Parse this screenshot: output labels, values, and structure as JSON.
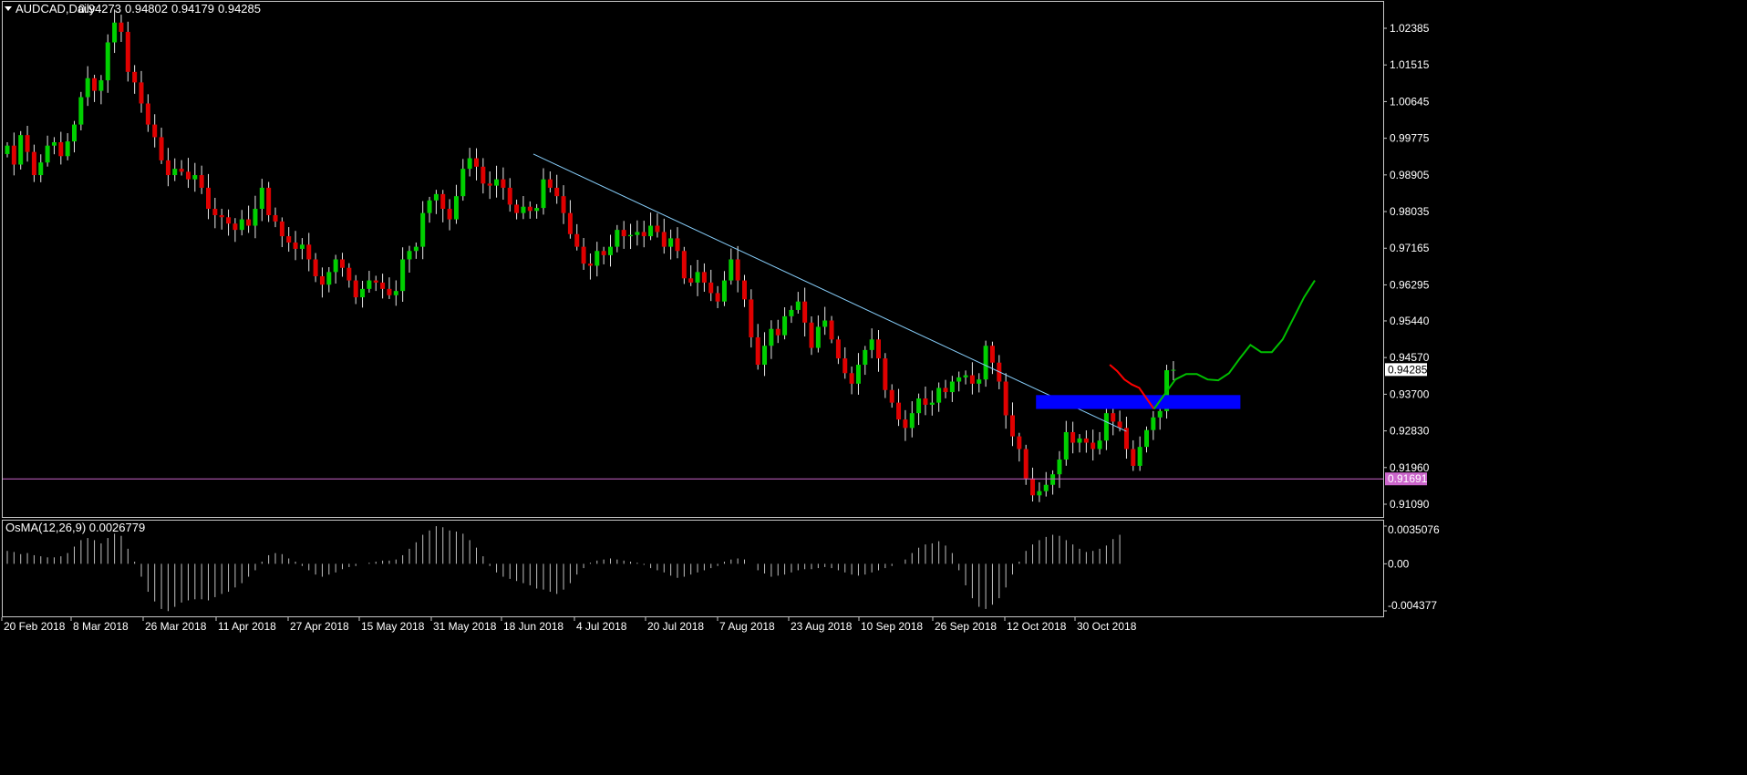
{
  "header": {
    "symbol": "AUDCAD,Daily",
    "open": "0.94273",
    "high": "0.94802",
    "low": "0.94179",
    "close": "0.94285",
    "menu_icon": "triangle-down-icon"
  },
  "indicator": {
    "title": "OsMA(12,26,9) 0.0026779",
    "tick_labels": [
      "0.0035076",
      "0.00",
      "-0.004377"
    ]
  },
  "price_levels": {
    "current_price_label": "0.94285",
    "current_price_color": "#ffffff",
    "horizontal_line_label": "0.91691",
    "horizontal_line_color": "#cc66cc"
  },
  "colors": {
    "bull": "#00d000",
    "bear": "#e00000",
    "trendline": "#87cefa",
    "zone": "#0000ff",
    "projection_down": "#ff0000",
    "projection_up": "#00c000",
    "osma_bars": "#c0c0c0"
  },
  "chart_data": [
    {
      "type": "candlestick",
      "title": "",
      "series": [
        {
          "name": "AUDCAD,Daily"
        }
      ],
      "y_ticks": [
        "1.02385",
        "1.01515",
        "1.00645",
        "0.99775",
        "0.98905",
        "0.98035",
        "0.97165",
        "0.96295",
        "0.95440",
        "0.94570",
        "0.93700",
        "0.92830",
        "0.91960",
        "0.91090"
      ],
      "ylim": [
        0.9085,
        1.0295
      ],
      "x_ticks": [
        "20 Feb 2018",
        "8 Mar 2018",
        "26 Mar 2018",
        "11 Apr 2018",
        "27 Apr 2018",
        "15 May 2018",
        "31 May 2018",
        "18 Jun 2018",
        "4 Jul 2018",
        "20 Jul 2018",
        "7 Aug 2018",
        "23 Aug 2018",
        "10 Sep 2018",
        "26 Sep 2018",
        "12 Oct 2018",
        "30 Oct 2018"
      ],
      "closes": [
        0.996,
        0.9915,
        0.9985,
        0.9945,
        0.989,
        0.992,
        0.996,
        0.9968,
        0.9935,
        0.997,
        1.001,
        1.0075,
        1.012,
        1.009,
        1.0115,
        1.0205,
        1.0252,
        1.023,
        1.0135,
        1.011,
        1.006,
        1.001,
        0.998,
        0.9925,
        0.989,
        0.9905,
        0.9898,
        0.988,
        0.989,
        0.986,
        0.981,
        0.9795,
        0.979,
        0.9775,
        0.976,
        0.9785,
        0.977,
        0.981,
        0.986,
        0.9795,
        0.978,
        0.9745,
        0.973,
        0.9715,
        0.9725,
        0.969,
        0.965,
        0.963,
        0.966,
        0.969,
        0.967,
        0.964,
        0.96,
        0.962,
        0.964,
        0.9635,
        0.962,
        0.9605,
        0.9615,
        0.969,
        0.971,
        0.972,
        0.98,
        0.983,
        0.9845,
        0.981,
        0.9785,
        0.984,
        0.9905,
        0.993,
        0.991,
        0.987,
        0.9865,
        0.988,
        0.986,
        0.982,
        0.98,
        0.9815,
        0.9805,
        0.9812,
        0.988,
        0.986,
        0.984,
        0.98,
        0.975,
        0.972,
        0.968,
        0.9675,
        0.971,
        0.97,
        0.972,
        0.976,
        0.9745,
        0.9748,
        0.9755,
        0.9745,
        0.977,
        0.9755,
        0.972,
        0.974,
        0.971,
        0.9645,
        0.9635,
        0.966,
        0.9635,
        0.961,
        0.959,
        0.964,
        0.969,
        0.964,
        0.9595,
        0.9505,
        0.944,
        0.9485,
        0.9525,
        0.951,
        0.9555,
        0.957,
        0.959,
        0.954,
        0.948,
        0.953,
        0.9545,
        0.95,
        0.9455,
        0.942,
        0.9395,
        0.944,
        0.9475,
        0.95,
        0.9455,
        0.938,
        0.935,
        0.931,
        0.929,
        0.9325,
        0.936,
        0.9345,
        0.935,
        0.9385,
        0.9375,
        0.94,
        0.941,
        0.9415,
        0.9395,
        0.9405,
        0.9485,
        0.9445,
        0.94,
        0.932,
        0.927,
        0.924,
        0.917,
        0.913,
        0.914,
        0.9155,
        0.918,
        0.9215,
        0.928,
        0.9255,
        0.9265,
        0.9255,
        0.924,
        0.926,
        0.9325,
        0.9305,
        0.929,
        0.924,
        0.92,
        0.9245,
        0.9285,
        0.9315,
        0.933,
        0.9427,
        0.9428
      ],
      "horizontal_level": 0.91691,
      "current_price": 0.94285,
      "trendline": {
        "from": [
          "18 Jun 2018",
          0.994
        ],
        "to": [
          "10 Nov 2018",
          0.9282
        ]
      },
      "resistance_zone": {
        "from": "12 Oct 2018",
        "to": "23 Nov 2018",
        "upper": 0.9368,
        "lower": 0.9335
      },
      "projection_down": [
        0.944,
        0.9425,
        0.9405,
        0.9393,
        0.9385,
        0.936,
        0.9335
      ],
      "projection_up": [
        0.9335,
        0.937,
        0.9405,
        0.9418,
        0.9418,
        0.9405,
        0.9403,
        0.942,
        0.9455,
        0.9487,
        0.947,
        0.947,
        0.95,
        0.955,
        0.96,
        0.964
      ]
    },
    {
      "type": "histogram",
      "title": "OsMA(12,26,9) 0.0026779",
      "ylim": [
        -0.004377,
        0.0035076
      ],
      "values": [
        0.0012,
        0.0011,
        0.0009,
        0.001,
        0.0008,
        0.0007,
        0.0006,
        0.0006,
        0.0007,
        0.001,
        0.0016,
        0.0022,
        0.0024,
        0.0022,
        0.0019,
        0.0024,
        0.0028,
        0.0026,
        0.0014,
        0.0002,
        -0.0012,
        -0.0026,
        -0.0035,
        -0.0042,
        -0.0044,
        -0.004,
        -0.0036,
        -0.0034,
        -0.0033,
        -0.0033,
        -0.0034,
        -0.0031,
        -0.0028,
        -0.0026,
        -0.0022,
        -0.0018,
        -0.0012,
        -0.0006,
        0.0002,
        0.0008,
        0.001,
        0.0009,
        0.0005,
        0.0002,
        -0.0002,
        -0.0006,
        -0.001,
        -0.0012,
        -0.001,
        -0.0008,
        -0.0005,
        -0.0003,
        -0.0002,
        0.0,
        0.0001,
        0.0002,
        0.0003,
        0.0003,
        0.0004,
        0.0008,
        0.0014,
        0.002,
        0.0027,
        0.0031,
        0.0035,
        0.0034,
        0.0031,
        0.003,
        0.0028,
        0.0022,
        0.0015,
        0.0007,
        -0.0002,
        -0.0008,
        -0.0012,
        -0.0014,
        -0.0016,
        -0.0018,
        -0.002,
        -0.0023,
        -0.0024,
        -0.0026,
        -0.0028,
        -0.0024,
        -0.0018,
        -0.001,
        -0.0004,
        0.0001,
        0.0003,
        0.0004,
        0.0005,
        0.0004,
        0.0003,
        0.0002,
        0.0001,
        -0.0001,
        -0.0004,
        -0.0006,
        -0.0008,
        -0.0011,
        -0.0013,
        -0.0012,
        -0.001,
        -0.0008,
        -0.0006,
        -0.0004,
        -0.0002,
        0.0002,
        0.0004,
        0.0005,
        0.0004,
        0.0,
        -0.0006,
        -0.0009,
        -0.0012,
        -0.0011,
        -0.001,
        -0.0008,
        -0.0006,
        -0.0005,
        -0.0005,
        -0.0004,
        -0.0003,
        -0.0004,
        -0.0006,
        -0.0008,
        -0.001,
        -0.0011,
        -0.001,
        -0.0008,
        -0.0006,
        -0.0004,
        -0.0002,
        0.0,
        0.0004,
        0.001,
        0.0015,
        0.0018,
        0.0019,
        0.0021,
        0.0017,
        0.001,
        -0.0006,
        -0.002,
        -0.0032,
        -0.004,
        -0.0042,
        -0.0038,
        -0.0032,
        -0.0022,
        -0.001,
        0.0002,
        0.0012,
        0.0018,
        0.0022,
        0.0025,
        0.0027,
        0.0026,
        0.0022,
        0.0018,
        0.0014,
        0.0011,
        0.0012,
        0.0014,
        0.0017,
        0.0023,
        0.0027
      ]
    }
  ]
}
